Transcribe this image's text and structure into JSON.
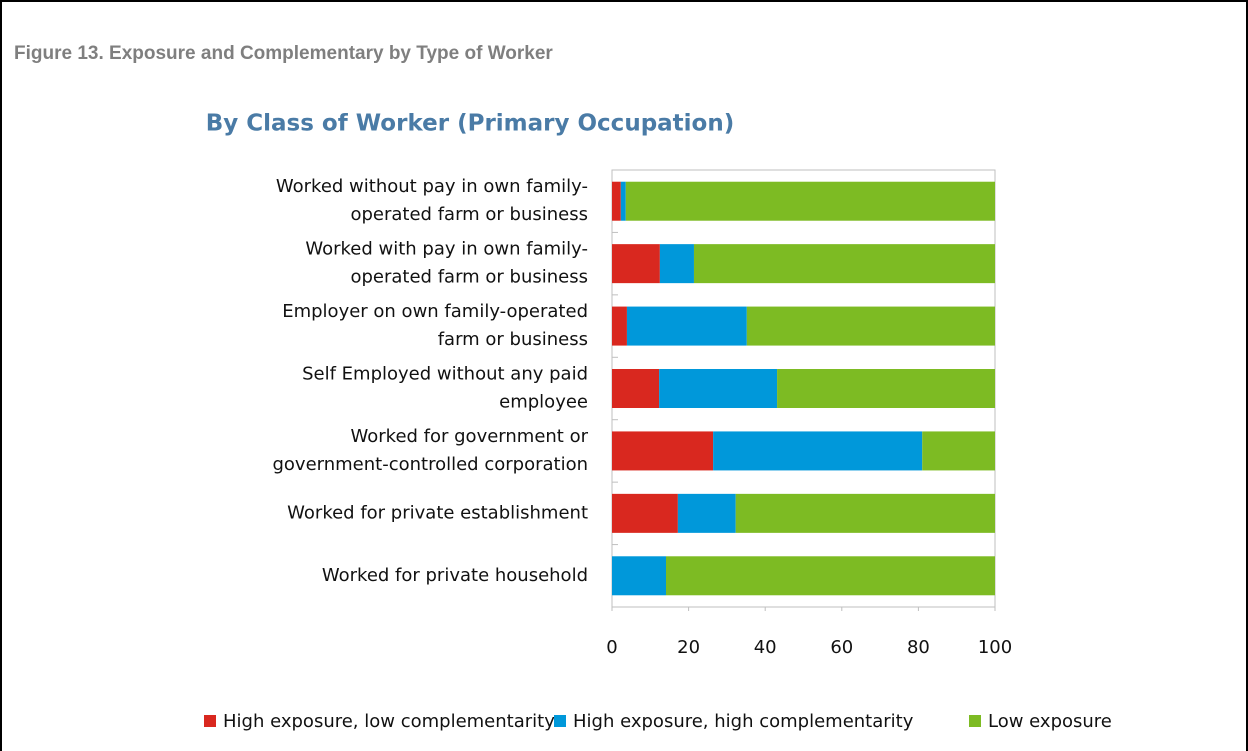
{
  "figure_caption": "Figure 13. Exposure and Complementary by Type of Worker",
  "chart_data": {
    "type": "stacked_bar_horizontal",
    "title": "By Class of Worker (Primary Occupation)",
    "categories": [
      "Worked without pay in own family-\noperated farm or business",
      "Worked with pay in own family-\noperated farm or business",
      "Employer on own family-operated\nfarm or business",
      "Self Employed without any paid\nemployee",
      "Worked for government or\ngovernment-controlled corporation",
      "Worked for private establishment",
      "Worked for private household"
    ],
    "series": [
      {
        "name": "High exposure, low complementarity",
        "color": "#d9281f",
        "values": [
          2.3,
          12.5,
          3.9,
          12.3,
          26.4,
          17.2,
          0
        ]
      },
      {
        "name": "High exposure, high complementarity",
        "color": "#0098da",
        "values": [
          1.3,
          8.9,
          31.3,
          30.8,
          54.6,
          15.1,
          14.1
        ]
      },
      {
        "name": "Low exposure",
        "color": "#7dbb23",
        "values": [
          96.4,
          78.6,
          64.8,
          56.9,
          19.0,
          67.7,
          85.9
        ]
      }
    ],
    "xlim": [
      0,
      100
    ],
    "xticks": [
      0,
      20,
      40,
      60,
      80,
      100
    ],
    "legend": "bottom"
  }
}
